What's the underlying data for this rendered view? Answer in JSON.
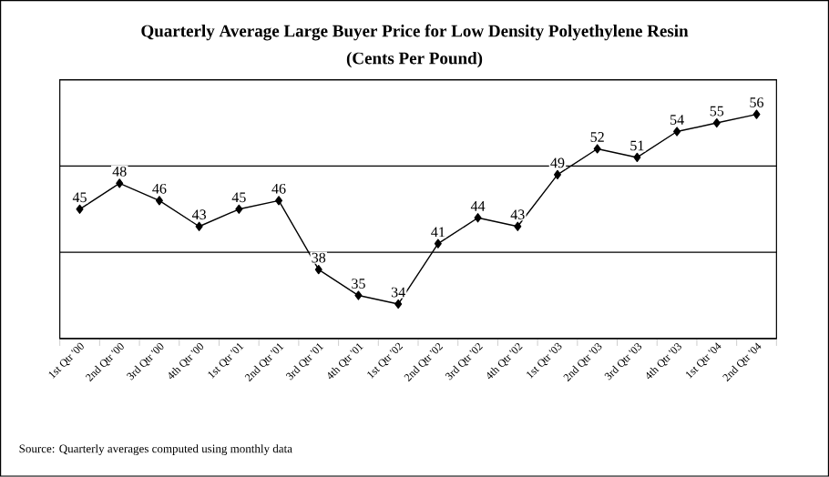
{
  "chart_data": {
    "type": "line",
    "title": "Quarterly Average Large Buyer Price for Low Density Polyethylene Resin",
    "subtitle": "(Cents Per Pound)",
    "categories": [
      "1st Qtr '00",
      "2nd Qtr '00",
      "3rd Qtr '00",
      "4th Qtr '00",
      "1st Qtr '01",
      "2nd Qtr '01",
      "3rd Qtr '01",
      "4th Qtr '01",
      "1st Qtr '02",
      "2nd Qtr '02",
      "3rd Qtr '02",
      "4th Qtr '02",
      "1st Qtr '03",
      "2nd Qtr '03",
      "3rd Qtr '03",
      "4th Qtr '03",
      "1st Qtr '04",
      "2nd Qtr '04"
    ],
    "values": [
      45,
      48,
      46,
      43,
      45,
      46,
      38,
      35,
      34,
      41,
      44,
      43,
      49,
      52,
      51,
      54,
      55,
      56
    ],
    "color": "#000000",
    "marker": "diamond",
    "line_style": "solid",
    "data_labels": true,
    "ylim": [
      30,
      60
    ],
    "yticks": [
      {
        "value": 30,
        "label": null
      },
      {
        "value": 40,
        "label": null
      },
      {
        "value": 50,
        "label": null
      },
      {
        "value": 60,
        "label": null
      }
    ],
    "tick_labels": "x",
    "grid": "y",
    "annotations": [
      "Source:  Quarterly averages computed using monthly data"
    ]
  }
}
